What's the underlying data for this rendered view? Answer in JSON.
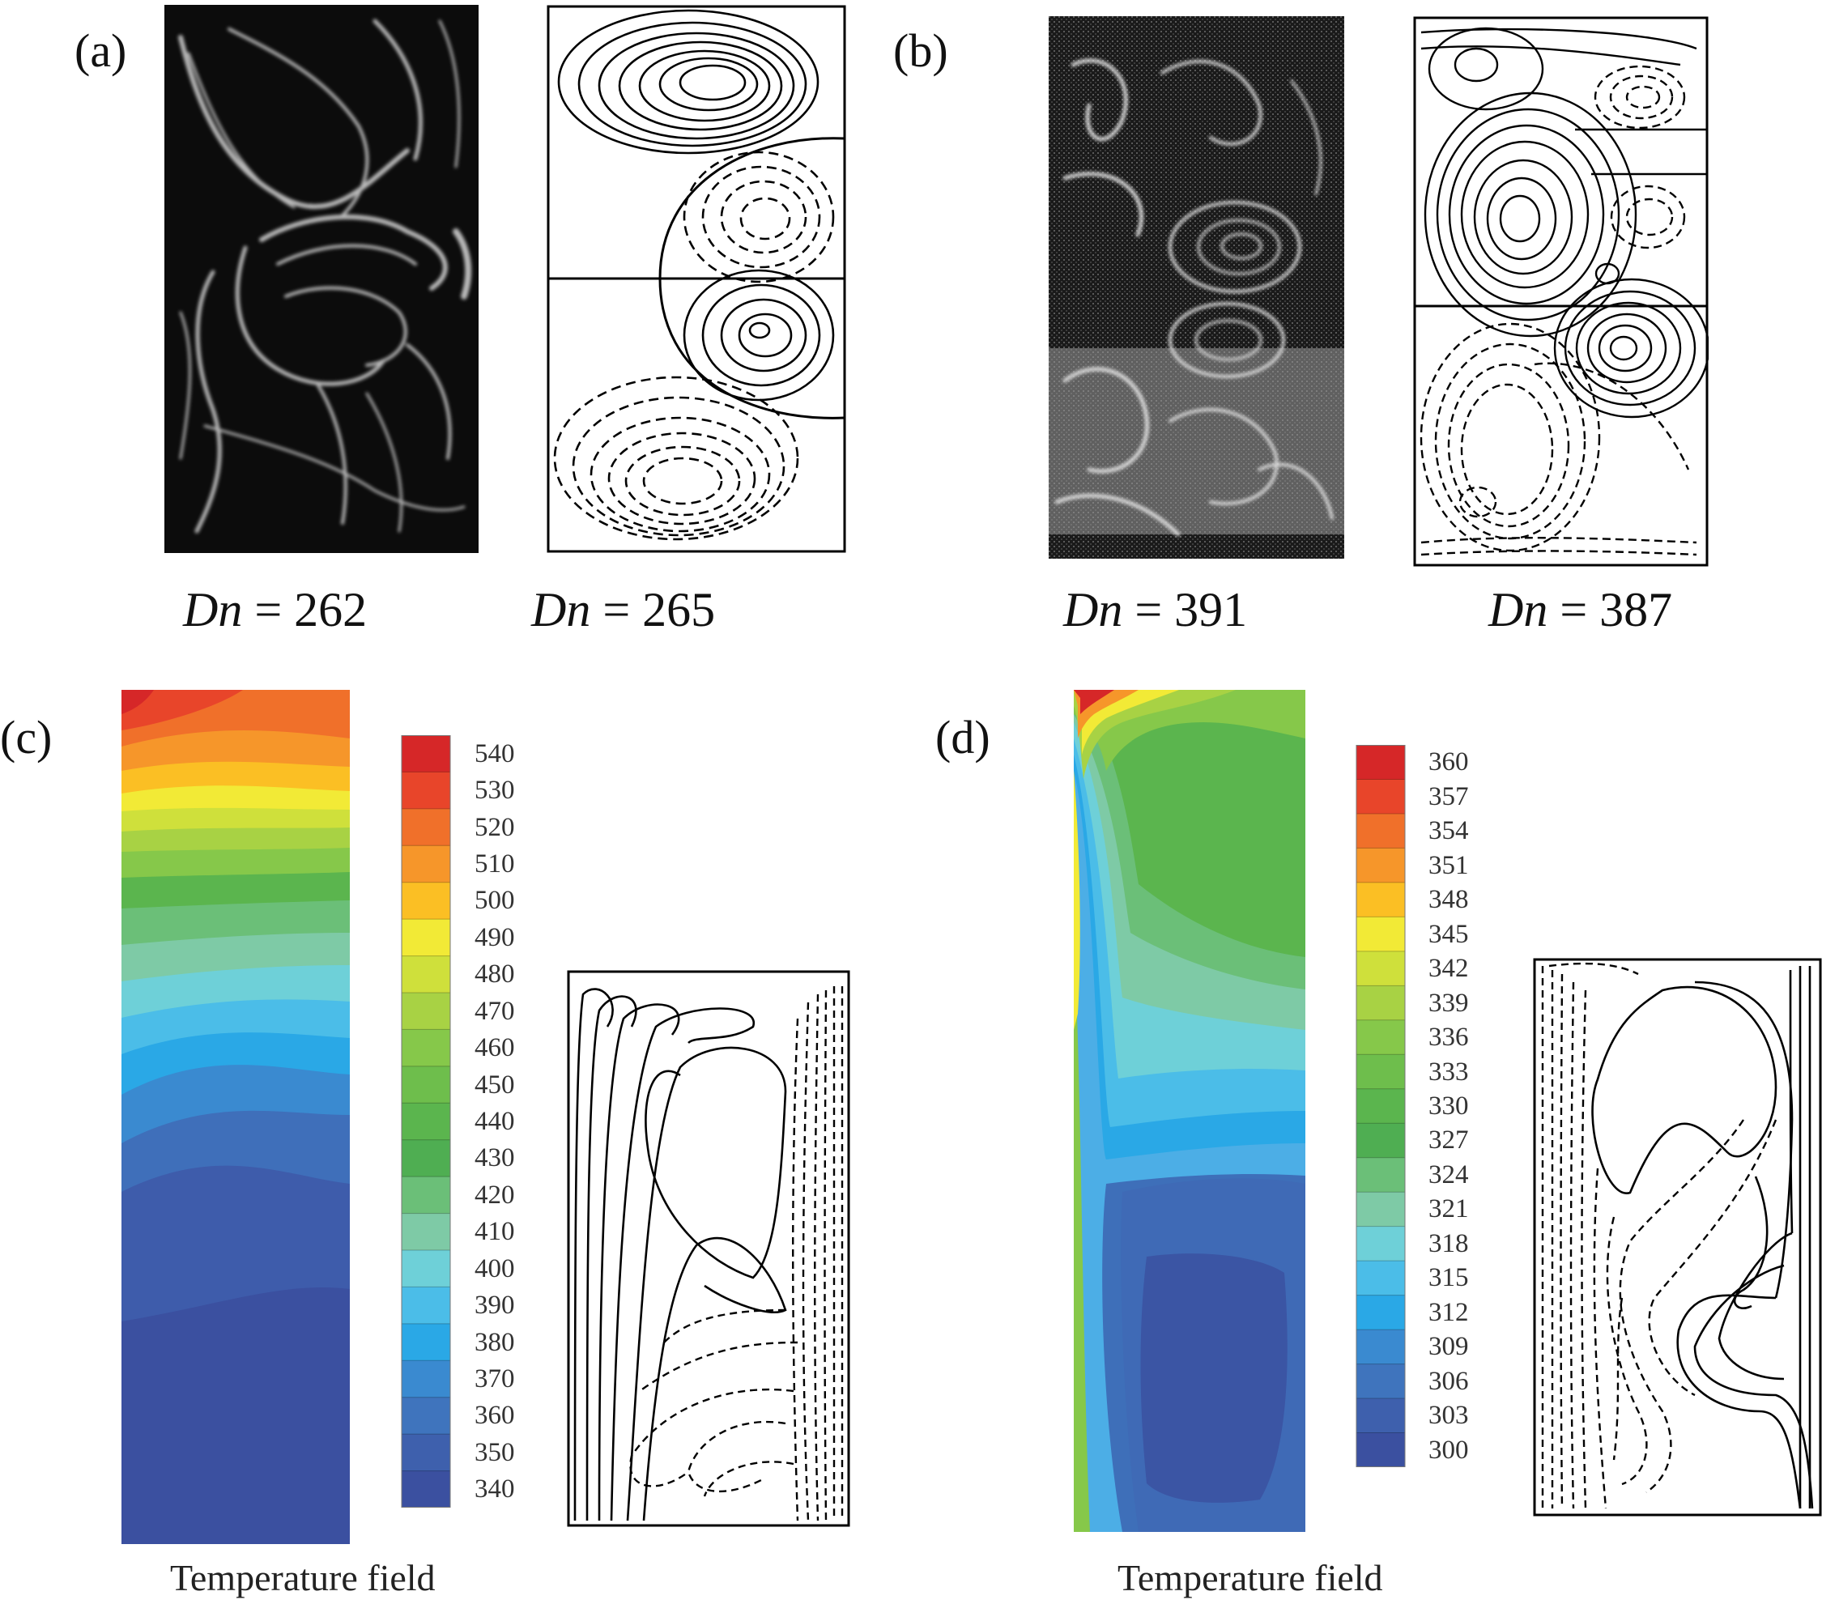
{
  "panels": {
    "a": {
      "letter": "(a)",
      "dn_left": {
        "symbol": "Dn",
        "equals": "= 262"
      },
      "dn_right": {
        "symbol": "Dn",
        "equals": "= 265"
      }
    },
    "b": {
      "letter": "(b)",
      "dn_left": {
        "symbol": "Dn",
        "equals": "= 391"
      },
      "dn_right": {
        "symbol": "Dn",
        "equals": "= 387"
      }
    },
    "c": {
      "letter": "(c)",
      "caption": "Temperature field",
      "colorbar_labels": [
        "540",
        "530",
        "520",
        "510",
        "500",
        "490",
        "480",
        "470",
        "460",
        "450",
        "440",
        "430",
        "420",
        "410",
        "400",
        "390",
        "380",
        "370",
        "360",
        "350",
        "340"
      ]
    },
    "d": {
      "letter": "(d)",
      "caption": "Temperature field",
      "colorbar_labels": [
        "360",
        "357",
        "354",
        "351",
        "348",
        "345",
        "342",
        "339",
        "336",
        "333",
        "330",
        "327",
        "324",
        "321",
        "318",
        "315",
        "312",
        "309",
        "306",
        "303",
        "300"
      ]
    }
  },
  "palette": [
    "#d62728",
    "#e8452a",
    "#f0702a",
    "#f6962a",
    "#fbbf24",
    "#f2ea36",
    "#cfe03b",
    "#a8d244",
    "#86c84a",
    "#6ebe4c",
    "#5bb54e",
    "#4fae52",
    "#6bbf78",
    "#7ecaa6",
    "#6ed0d8",
    "#4bbde8",
    "#2aa8e6",
    "#3a8ad0",
    "#3f74bd",
    "#3e60ad",
    "#3b50a0"
  ]
}
